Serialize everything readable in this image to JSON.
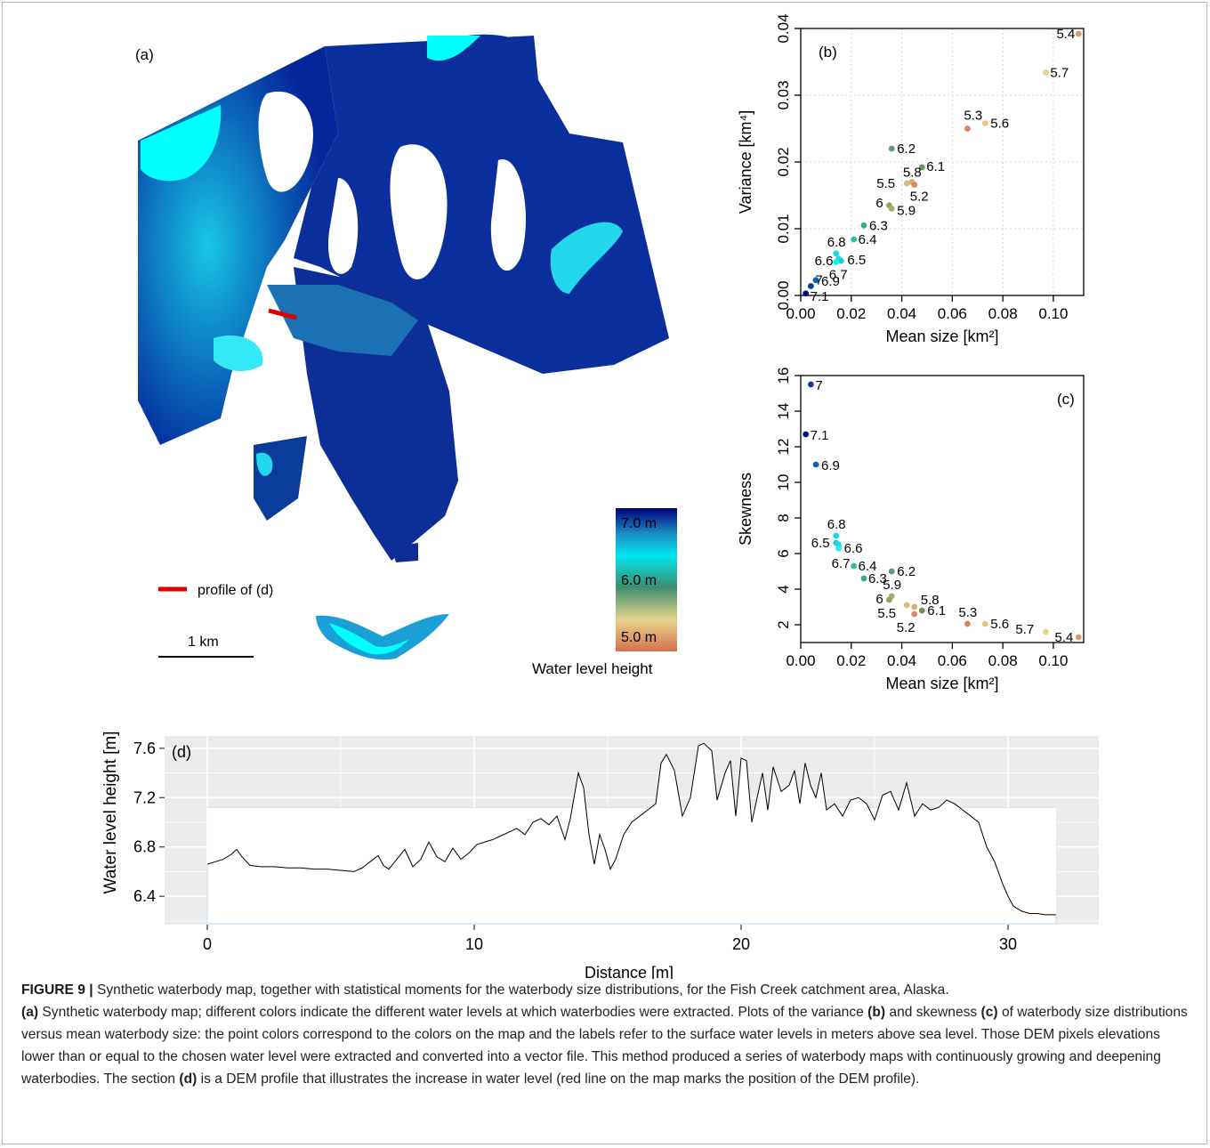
{
  "colors": {
    "water_dark": "#00007f",
    "water_mid": "#1a8fc6",
    "water_light": "#00ffff",
    "profile_line": "#e00000",
    "panel_d_bg": "#ebebeb",
    "panel_d_grid": "#ffffff"
  },
  "map": {
    "panel_label": "(a)",
    "legend_profile_label": "profile of (d)",
    "scale_label": "1 km",
    "colorbar_title": "Water level height",
    "colorbar_ticks": [
      "7.0 m",
      "6.0 m",
      "5.0 m"
    ]
  },
  "chart_data": [
    {
      "type": "scatter",
      "panel_label": "(b)",
      "xlabel": "Mean size [km²]",
      "ylabel": "Variance [km⁴]",
      "xlim": [
        0,
        0.112
      ],
      "ylim": [
        0,
        0.04
      ],
      "xticks": [
        "0.00",
        "0.02",
        "0.04",
        "0.06",
        "0.08",
        "0.10"
      ],
      "yticks": [
        "0.00",
        "0.01",
        "0.02",
        "0.03",
        "0.04"
      ],
      "grid": true,
      "points": [
        {
          "label": "5.4",
          "x": 0.11,
          "y": 0.0392,
          "color": "#d49a6a"
        },
        {
          "label": "5.7",
          "x": 0.097,
          "y": 0.0334,
          "color": "#e8d488"
        },
        {
          "label": "5.3",
          "x": 0.066,
          "y": 0.025,
          "color": "#d5825f"
        },
        {
          "label": "5.6",
          "x": 0.073,
          "y": 0.0258,
          "color": "#e8c486"
        },
        {
          "label": "6.2",
          "x": 0.036,
          "y": 0.022,
          "color": "#5e9a76"
        },
        {
          "label": "6.1",
          "x": 0.048,
          "y": 0.0192,
          "color": "#6e8f60"
        },
        {
          "label": "5.8",
          "x": 0.044,
          "y": 0.017,
          "color": "#c6b27a"
        },
        {
          "label": "5.5",
          "x": 0.042,
          "y": 0.0168,
          "color": "#ddb77b"
        },
        {
          "label": "5.2",
          "x": 0.045,
          "y": 0.0166,
          "color": "#d28a66"
        },
        {
          "label": "6",
          "x": 0.035,
          "y": 0.0135,
          "color": "#8ea466"
        },
        {
          "label": "5.9",
          "x": 0.036,
          "y": 0.013,
          "color": "#a8ac72"
        },
        {
          "label": "6.3",
          "x": 0.025,
          "y": 0.0105,
          "color": "#41a68f"
        },
        {
          "label": "6.4",
          "x": 0.021,
          "y": 0.0084,
          "color": "#2fbfae"
        },
        {
          "label": "6.8",
          "x": 0.014,
          "y": 0.0063,
          "color": "#14d8ee"
        },
        {
          "label": "6.6",
          "x": 0.015,
          "y": 0.0055,
          "color": "#17dde0"
        },
        {
          "label": "6.5",
          "x": 0.016,
          "y": 0.0052,
          "color": "#24ccd0"
        },
        {
          "label": "6.7",
          "x": 0.014,
          "y": 0.005,
          "color": "#0cf0ff"
        },
        {
          "label": "6.9",
          "x": 0.006,
          "y": 0.0023,
          "color": "#1060b0"
        },
        {
          "label": "7",
          "x": 0.004,
          "y": 0.0014,
          "color": "#0a3c98"
        },
        {
          "label": "7.1",
          "x": 0.002,
          "y": 0.0003,
          "color": "#00107f"
        }
      ]
    },
    {
      "type": "scatter",
      "panel_label": "(c)",
      "xlabel": "Mean size [km²]",
      "ylabel": "Skewness",
      "xlim": [
        0,
        0.112
      ],
      "ylim": [
        1,
        16
      ],
      "xticks": [
        "0.00",
        "0.02",
        "0.04",
        "0.06",
        "0.08",
        "0.10"
      ],
      "yticks": [
        "2",
        "4",
        "6",
        "8",
        "10",
        "12",
        "14",
        "16"
      ],
      "grid": false,
      "points": [
        {
          "label": "7",
          "x": 0.004,
          "y": 15.5,
          "color": "#0a3c98"
        },
        {
          "label": "7.1",
          "x": 0.002,
          "y": 12.7,
          "color": "#00107f"
        },
        {
          "label": "6.9",
          "x": 0.006,
          "y": 11.0,
          "color": "#1060b0"
        },
        {
          "label": "6.8",
          "x": 0.014,
          "y": 7.0,
          "color": "#14d8ee"
        },
        {
          "label": "6.5",
          "x": 0.014,
          "y": 6.6,
          "color": "#24ccd0"
        },
        {
          "label": "6.6",
          "x": 0.015,
          "y": 6.5,
          "color": "#17dde0"
        },
        {
          "label": "6.7",
          "x": 0.015,
          "y": 6.3,
          "color": "#0cf0ff"
        },
        {
          "label": "6.4",
          "x": 0.021,
          "y": 5.3,
          "color": "#2fbfae"
        },
        {
          "label": "6.3",
          "x": 0.025,
          "y": 4.6,
          "color": "#41a68f"
        },
        {
          "label": "6.2",
          "x": 0.036,
          "y": 5.0,
          "color": "#5e9a76"
        },
        {
          "label": "5.9",
          "x": 0.036,
          "y": 3.6,
          "color": "#a8ac72"
        },
        {
          "label": "6",
          "x": 0.035,
          "y": 3.4,
          "color": "#8ea466"
        },
        {
          "label": "5.5",
          "x": 0.042,
          "y": 3.1,
          "color": "#ddb77b"
        },
        {
          "label": "5.8",
          "x": 0.045,
          "y": 3.0,
          "color": "#c6b27a"
        },
        {
          "label": "5.2",
          "x": 0.045,
          "y": 2.6,
          "color": "#d28a66"
        },
        {
          "label": "6.1",
          "x": 0.048,
          "y": 2.8,
          "color": "#6e8f60"
        },
        {
          "label": "5.3",
          "x": 0.066,
          "y": 2.05,
          "color": "#d5825f"
        },
        {
          "label": "5.6",
          "x": 0.073,
          "y": 2.05,
          "color": "#e8c486"
        },
        {
          "label": "5.7",
          "x": 0.097,
          "y": 1.6,
          "color": "#e8d488"
        },
        {
          "label": "5.4",
          "x": 0.11,
          "y": 1.3,
          "color": "#d49a6a"
        }
      ]
    },
    {
      "type": "area",
      "panel_label": "(d)",
      "xlabel": "Distance [m]",
      "ylabel": "Water level height [m]",
      "xlim": [
        -1.6,
        33.4
      ],
      "ylim": [
        6.17,
        7.7
      ],
      "xticks": [
        0,
        10,
        20,
        30
      ],
      "yticks": [
        6.4,
        6.8,
        7.2,
        7.6
      ],
      "water_level": 7.12,
      "x": [
        0,
        0.3,
        0.6,
        0.9,
        1.1,
        1.3,
        1.6,
        2.0,
        2.5,
        3.0,
        3.5,
        4.0,
        4.5,
        5.0,
        5.5,
        5.8,
        6.1,
        6.4,
        6.6,
        6.8,
        7.1,
        7.4,
        7.7,
        8.0,
        8.3,
        8.6,
        8.9,
        9.2,
        9.5,
        9.8,
        10.1,
        10.4,
        10.7,
        11.0,
        11.3,
        11.6,
        11.9,
        12.2,
        12.5,
        12.8,
        13.1,
        13.4,
        13.6,
        13.9,
        14.1,
        14.3,
        14.5,
        14.7,
        14.9,
        15.1,
        15.3,
        15.6,
        15.9,
        16.2,
        16.5,
        16.8,
        17.0,
        17.2,
        17.5,
        17.8,
        18.1,
        18.4,
        18.6,
        18.9,
        19.1,
        19.4,
        19.6,
        19.8,
        20.0,
        20.2,
        20.4,
        20.6,
        20.8,
        21.0,
        21.2,
        21.5,
        21.8,
        22.0,
        22.2,
        22.4,
        22.6,
        22.8,
        23.0,
        23.2,
        23.5,
        23.8,
        24.1,
        24.4,
        24.7,
        25.0,
        25.3,
        25.6,
        25.9,
        26.2,
        26.5,
        26.8,
        27.1,
        27.4,
        27.7,
        28.0,
        28.3,
        28.6,
        28.9,
        29.2,
        29.5,
        29.8,
        30.0,
        30.2,
        30.5,
        30.8,
        31.1,
        31.4,
        31.8
      ],
      "y": [
        6.66,
        6.68,
        6.7,
        6.74,
        6.78,
        6.72,
        6.65,
        6.64,
        6.64,
        6.63,
        6.63,
        6.62,
        6.62,
        6.61,
        6.6,
        6.63,
        6.68,
        6.73,
        6.65,
        6.62,
        6.7,
        6.78,
        6.64,
        6.7,
        6.84,
        6.72,
        6.68,
        6.79,
        6.7,
        6.75,
        6.82,
        6.84,
        6.86,
        6.89,
        6.92,
        6.95,
        6.9,
        7.0,
        7.03,
        6.98,
        7.05,
        6.86,
        7.03,
        7.4,
        7.28,
        6.9,
        6.66,
        6.9,
        6.78,
        6.62,
        6.7,
        6.9,
        7.0,
        7.05,
        7.1,
        7.15,
        7.48,
        7.55,
        7.42,
        7.05,
        7.2,
        7.62,
        7.64,
        7.58,
        7.18,
        7.4,
        7.5,
        7.05,
        7.52,
        7.5,
        7.0,
        7.2,
        7.4,
        7.1,
        7.45,
        7.25,
        7.3,
        7.42,
        7.15,
        7.48,
        7.3,
        7.2,
        7.4,
        7.1,
        7.15,
        7.05,
        7.18,
        7.2,
        7.15,
        7.02,
        7.22,
        7.25,
        7.1,
        7.32,
        7.05,
        7.15,
        7.1,
        7.12,
        7.18,
        7.15,
        7.1,
        7.05,
        7.0,
        6.8,
        6.68,
        6.5,
        6.4,
        6.32,
        6.28,
        6.26,
        6.26,
        6.25,
        6.25
      ]
    }
  ],
  "caption": {
    "figure_label": "FIGURE 9 |",
    "line1": " Synthetic waterbody map, together with statistical moments for the waterbody size distributions, for the Fish Creek catchment area, Alaska.",
    "a_label": "(a)",
    "a_text": " Synthetic waterbody map; different colors indicate the different water levels at which waterbodies were extracted. Plots of the variance ",
    "b_label": "(b)",
    "b_text": " and skewness ",
    "c_label": "(c)",
    "c_text": " of waterbody size distributions versus mean waterbody size: the point colors correspond to the colors on the map and the labels refer to the surface water levels in meters above sea level. Those DEM pixels elevations lower than or equal to the chosen water level were extracted and converted into a vector file. This method produced a series of waterbody maps with continuously growing and deepening waterbodies. The section ",
    "d_label": "(d)",
    "d_text": " is a DEM profile that illustrates the increase in water level (red line on the map marks the position of the DEM profile)."
  }
}
